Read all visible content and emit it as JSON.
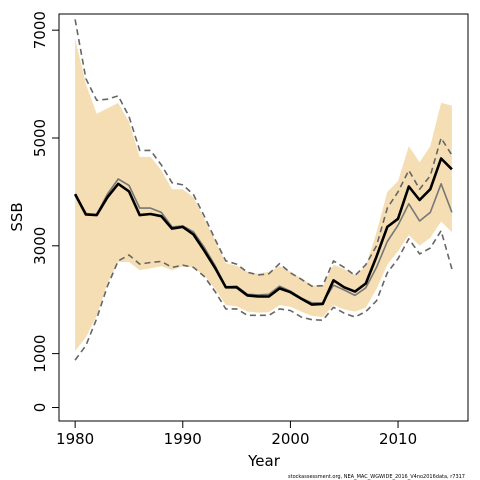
{
  "chart_data": {
    "type": "line",
    "xlabel": "Year",
    "ylabel": "SSB",
    "xlim": [
      1978.5,
      2016.5
    ],
    "ylim": [
      -250,
      7300
    ],
    "xticks": [
      1980,
      1990,
      2000,
      2010
    ],
    "yticks": [
      0,
      1000,
      3000,
      5000,
      7000
    ],
    "credit": "stockassessment.org, NEA_MAC_WGWIDE_2016_V4no2016data, r7317",
    "x": [
      1980,
      1981,
      1982,
      1983,
      1984,
      1985,
      1986,
      1987,
      1988,
      1989,
      1990,
      1991,
      1992,
      1993,
      1994,
      1995,
      1996,
      1997,
      1998,
      1999,
      2000,
      2001,
      2002,
      2003,
      2004,
      2005,
      2006,
      2007,
      2008,
      2009,
      2010,
      2011,
      2012,
      2013,
      2014,
      2015
    ],
    "series": [
      {
        "role": "ci_band",
        "color": "#f5deb3",
        "lower": [
          1050,
          1300,
          1700,
          2300,
          2700,
          2700,
          2550,
          2580,
          2620,
          2550,
          2620,
          2600,
          2450,
          2200,
          1900,
          1880,
          1780,
          1760,
          1770,
          1900,
          1870,
          1780,
          1700,
          1680,
          1900,
          1820,
          1780,
          1850,
          2200,
          2650,
          2900,
          3200,
          3000,
          3150,
          3450,
          3250
        ],
        "upper": [
          6850,
          6000,
          5450,
          5550,
          5650,
          5300,
          4650,
          4650,
          4400,
          4050,
          4050,
          3900,
          3500,
          3100,
          2680,
          2630,
          2520,
          2480,
          2520,
          2620,
          2520,
          2400,
          2270,
          2250,
          2650,
          2570,
          2460,
          2620,
          3250,
          4000,
          4200,
          4850,
          4550,
          4850,
          5650,
          5600
        ]
      },
      {
        "role": "upper_ci_previous",
        "color": "#666666",
        "dashed": true,
        "values": [
          7200,
          6100,
          5700,
          5720,
          5780,
          5400,
          4770,
          4770,
          4500,
          4170,
          4130,
          3950,
          3550,
          3120,
          2720,
          2660,
          2510,
          2460,
          2480,
          2670,
          2500,
          2380,
          2250,
          2260,
          2720,
          2600,
          2450,
          2650,
          3000,
          3700,
          4000,
          4400,
          4050,
          4300,
          5000,
          4680
        ]
      },
      {
        "role": "lower_ci_previous",
        "color": "#666666",
        "dashed": true,
        "values": [
          880,
          1150,
          1650,
          2250,
          2720,
          2830,
          2660,
          2690,
          2710,
          2600,
          2640,
          2600,
          2430,
          2150,
          1830,
          1830,
          1710,
          1710,
          1710,
          1830,
          1800,
          1680,
          1630,
          1620,
          1860,
          1750,
          1680,
          1780,
          1980,
          2500,
          2760,
          3130,
          2850,
          2960,
          3280,
          2570
        ]
      },
      {
        "role": "estimate_previous",
        "color": "#777777",
        "values": [
          3960,
          3600,
          3580,
          3960,
          4240,
          4120,
          3700,
          3700,
          3620,
          3350,
          3370,
          3260,
          2970,
          2630,
          2240,
          2250,
          2100,
          2090,
          2100,
          2250,
          2160,
          2030,
          1940,
          1940,
          2270,
          2180,
          2080,
          2220,
          2600,
          3080,
          3380,
          3780,
          3460,
          3620,
          4150,
          3620
        ]
      },
      {
        "role": "estimate",
        "color": "#000000",
        "values": [
          3960,
          3580,
          3570,
          3900,
          4150,
          4010,
          3570,
          3590,
          3550,
          3320,
          3350,
          3210,
          2910,
          2590,
          2230,
          2230,
          2080,
          2060,
          2060,
          2210,
          2140,
          2020,
          1910,
          1920,
          2360,
          2230,
          2150,
          2300,
          2800,
          3350,
          3500,
          4100,
          3850,
          4050,
          4620,
          4420
        ]
      }
    ]
  }
}
